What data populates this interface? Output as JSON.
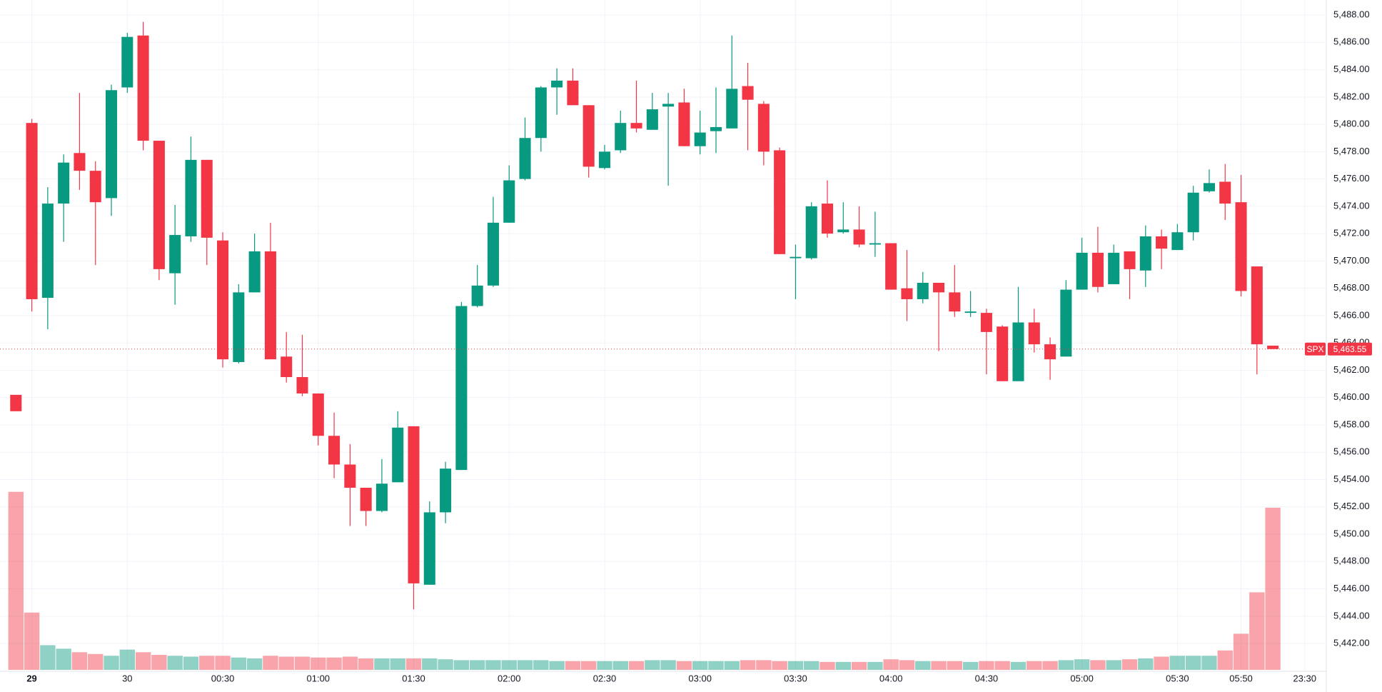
{
  "chart_data": {
    "type": "candlestick",
    "symbol": "SPX",
    "last_price": {
      "value": 5463.55,
      "label": "5,463.55"
    },
    "up_color": "#089981",
    "down_color": "#f23645",
    "grid": true,
    "open": [
      5460.2,
      5480.1,
      5467.3,
      5474.2,
      5477.9,
      5476.6,
      5474.6,
      5482.7,
      5486.5,
      5478.8,
      5469.1,
      5471.8,
      5477.4,
      5471.5,
      5462.6,
      5467.7,
      5470.7,
      5463.0,
      5461.5,
      5460.3,
      5457.2,
      5455.1,
      5453.4,
      5451.7,
      5453.8,
      5457.9,
      5446.3,
      5451.6,
      5454.7,
      5466.7,
      5468.2,
      5472.8,
      5476.0,
      5479.0,
      5482.7,
      5483.2,
      5481.4,
      5476.8,
      5478.1,
      5480.1,
      5479.6,
      5481.3,
      5481.6,
      5478.4,
      5479.5,
      5479.7,
      5482.8,
      5481.5,
      5478.1,
      5470.2,
      5470.2,
      5474.2,
      5472.1,
      5472.3,
      5471.2,
      5471.3,
      5468.0,
      5467.2,
      5468.4,
      5467.7,
      5466.2,
      5466.2,
      5465.2,
      5461.2,
      5465.5,
      5463.9,
      5463.0,
      5467.9,
      5470.6,
      5468.3,
      5470.7,
      5469.3,
      5471.8,
      5470.8,
      5472.1,
      5475.1,
      5475.8,
      5474.3,
      5469.6,
      5463.8
    ],
    "high": [
      5460.2,
      5480.4,
      5475.4,
      5477.8,
      5482.3,
      5477.3,
      5482.9,
      5486.7,
      5487.5,
      5478.8,
      5474.1,
      5479.1,
      5477.4,
      5472.1,
      5468.3,
      5472.0,
      5472.8,
      5464.8,
      5464.6,
      5460.3,
      5458.9,
      5456.6,
      5453.4,
      5455.5,
      5459.0,
      5457.9,
      5452.4,
      5455.3,
      5467.0,
      5469.7,
      5474.7,
      5477.0,
      5480.5,
      5482.8,
      5484.1,
      5484.1,
      5481.4,
      5478.5,
      5481.0,
      5483.2,
      5482.3,
      5482.3,
      5482.6,
      5481.0,
      5482.7,
      5486.5,
      5484.5,
      5481.7,
      5478.3,
      5471.2,
      5474.3,
      5475.9,
      5474.3,
      5474.0,
      5473.6,
      5471.3,
      5470.8,
      5469.2,
      5468.4,
      5469.7,
      5467.8,
      5466.5,
      5465.3,
      5468.1,
      5466.5,
      5464.4,
      5468.6,
      5471.7,
      5472.5,
      5471.2,
      5470.7,
      5472.6,
      5472.3,
      5472.7,
      5475.5,
      5476.7,
      5477.1,
      5476.3,
      5469.6,
      5463.8
    ],
    "low": [
      5459.0,
      5466.3,
      5465.0,
      5471.4,
      5475.2,
      5469.7,
      5473.3,
      5482.3,
      5478.1,
      5468.6,
      5466.8,
      5471.4,
      5469.7,
      5462.2,
      5462.5,
      5467.7,
      5462.8,
      5461.1,
      5460.1,
      5456.5,
      5454.1,
      5450.6,
      5450.6,
      5451.6,
      5453.8,
      5444.5,
      5446.3,
      5450.8,
      5454.7,
      5466.6,
      5468.1,
      5472.8,
      5475.9,
      5478.0,
      5480.7,
      5481.4,
      5476.1,
      5476.7,
      5477.9,
      5479.4,
      5479.6,
      5475.5,
      5478.4,
      5477.8,
      5477.9,
      5479.7,
      5478.1,
      5477.0,
      5470.5,
      5467.2,
      5470.1,
      5471.7,
      5472.0,
      5471.0,
      5470.3,
      5467.9,
      5465.6,
      5466.9,
      5463.4,
      5465.9,
      5465.9,
      5461.7,
      5461.2,
      5461.2,
      5463.3,
      5461.3,
      5463.0,
      5467.9,
      5467.7,
      5468.3,
      5467.2,
      5468.1,
      5469.4,
      5470.8,
      5471.5,
      5475.0,
      5473.0,
      5467.4,
      5461.7,
      5463.55
    ],
    "close": [
      5459.0,
      5467.2,
      5474.2,
      5477.2,
      5476.6,
      5474.3,
      5482.5,
      5486.4,
      5478.8,
      5469.4,
      5471.9,
      5477.4,
      5471.7,
      5462.8,
      5467.7,
      5470.7,
      5462.8,
      5461.5,
      5460.3,
      5457.2,
      5455.1,
      5453.4,
      5451.7,
      5453.7,
      5457.8,
      5446.4,
      5451.6,
      5454.8,
      5466.7,
      5468.2,
      5472.8,
      5475.9,
      5479.0,
      5482.7,
      5483.2,
      5481.4,
      5476.9,
      5478.0,
      5480.1,
      5479.7,
      5481.1,
      5481.5,
      5478.4,
      5479.4,
      5479.8,
      5482.6,
      5481.8,
      5478.0,
      5470.5,
      5470.3,
      5474.0,
      5472.0,
      5472.3,
      5471.2,
      5471.3,
      5467.9,
      5467.2,
      5468.4,
      5467.7,
      5466.3,
      5466.3,
      5464.8,
      5461.2,
      5465.5,
      5463.9,
      5462.8,
      5467.9,
      5470.6,
      5468.1,
      5470.6,
      5469.4,
      5471.8,
      5470.9,
      5472.1,
      5475.0,
      5475.7,
      5474.2,
      5467.8,
      5463.9,
      5463.55
    ],
    "volume": [
      202,
      65,
      28,
      24,
      20,
      18,
      16,
      23,
      20,
      17,
      16,
      15,
      16,
      16,
      14,
      13,
      16,
      15,
      15,
      14,
      14,
      15,
      13,
      13,
      13,
      13,
      13,
      12,
      11,
      11,
      11,
      11,
      11,
      11,
      10,
      10,
      10,
      10,
      10,
      10,
      11,
      11,
      10,
      10,
      10,
      10,
      11,
      11,
      10,
      10,
      10,
      9,
      9,
      9,
      9,
      12,
      11,
      10,
      10,
      10,
      9,
      10,
      10,
      9,
      10,
      10,
      11,
      12,
      11,
      11,
      12,
      13,
      15,
      16,
      16,
      16,
      22,
      41,
      88,
      184
    ],
    "vlim": [
      0,
      760
    ],
    "xlim": [
      -1,
      82.36
    ],
    "xticks": [
      {
        "value": 1,
        "label": "29"
      },
      {
        "value": 7,
        "label": "30"
      },
      {
        "value": 13,
        "label": "00:30"
      },
      {
        "value": 19,
        "label": "01:00"
      },
      {
        "value": 25,
        "label": "01:30"
      },
      {
        "value": 31,
        "label": "02:00"
      },
      {
        "value": 37,
        "label": "02:30"
      },
      {
        "value": 43,
        "label": "03:00"
      },
      {
        "value": 49,
        "label": "03:30"
      },
      {
        "value": 55,
        "label": "04:00"
      },
      {
        "value": 61,
        "label": "04:30"
      },
      {
        "value": 67,
        "label": "05:00"
      },
      {
        "value": 73,
        "label": "05:30"
      },
      {
        "value": 77,
        "label": "05:50"
      },
      {
        "value": 81,
        "label": "23:30"
      }
    ],
    "ylim": [
      5440.07,
      5489.1
    ],
    "yticks": [
      {
        "value": 5442,
        "label": "5,442.00"
      },
      {
        "value": 5444,
        "label": "5,444.00"
      },
      {
        "value": 5446,
        "label": "5,446.00"
      },
      {
        "value": 5448,
        "label": "5,448.00"
      },
      {
        "value": 5450,
        "label": "5,450.00"
      },
      {
        "value": 5452,
        "label": "5,452.00"
      },
      {
        "value": 5454,
        "label": "5,454.00"
      },
      {
        "value": 5456,
        "label": "5,456.00"
      },
      {
        "value": 5458,
        "label": "5,458.00"
      },
      {
        "value": 5460,
        "label": "5,460.00"
      },
      {
        "value": 5462,
        "label": "5,462.00"
      },
      {
        "value": 5464,
        "label": "5,464.00"
      },
      {
        "value": 5466,
        "label": "5,466.00"
      },
      {
        "value": 5468,
        "label": "5,468.00"
      },
      {
        "value": 5470,
        "label": "5,470.00"
      },
      {
        "value": 5472,
        "label": "5,472.00"
      },
      {
        "value": 5474,
        "label": "5,474.00"
      },
      {
        "value": 5476,
        "label": "5,476.00"
      },
      {
        "value": 5478,
        "label": "5,478.00"
      },
      {
        "value": 5480,
        "label": "5,480.00"
      },
      {
        "value": 5482,
        "label": "5,482.00"
      },
      {
        "value": 5484,
        "label": "5,484.00"
      },
      {
        "value": 5486,
        "label": "5,486.00"
      },
      {
        "value": 5488,
        "label": "5,488.00"
      }
    ]
  }
}
